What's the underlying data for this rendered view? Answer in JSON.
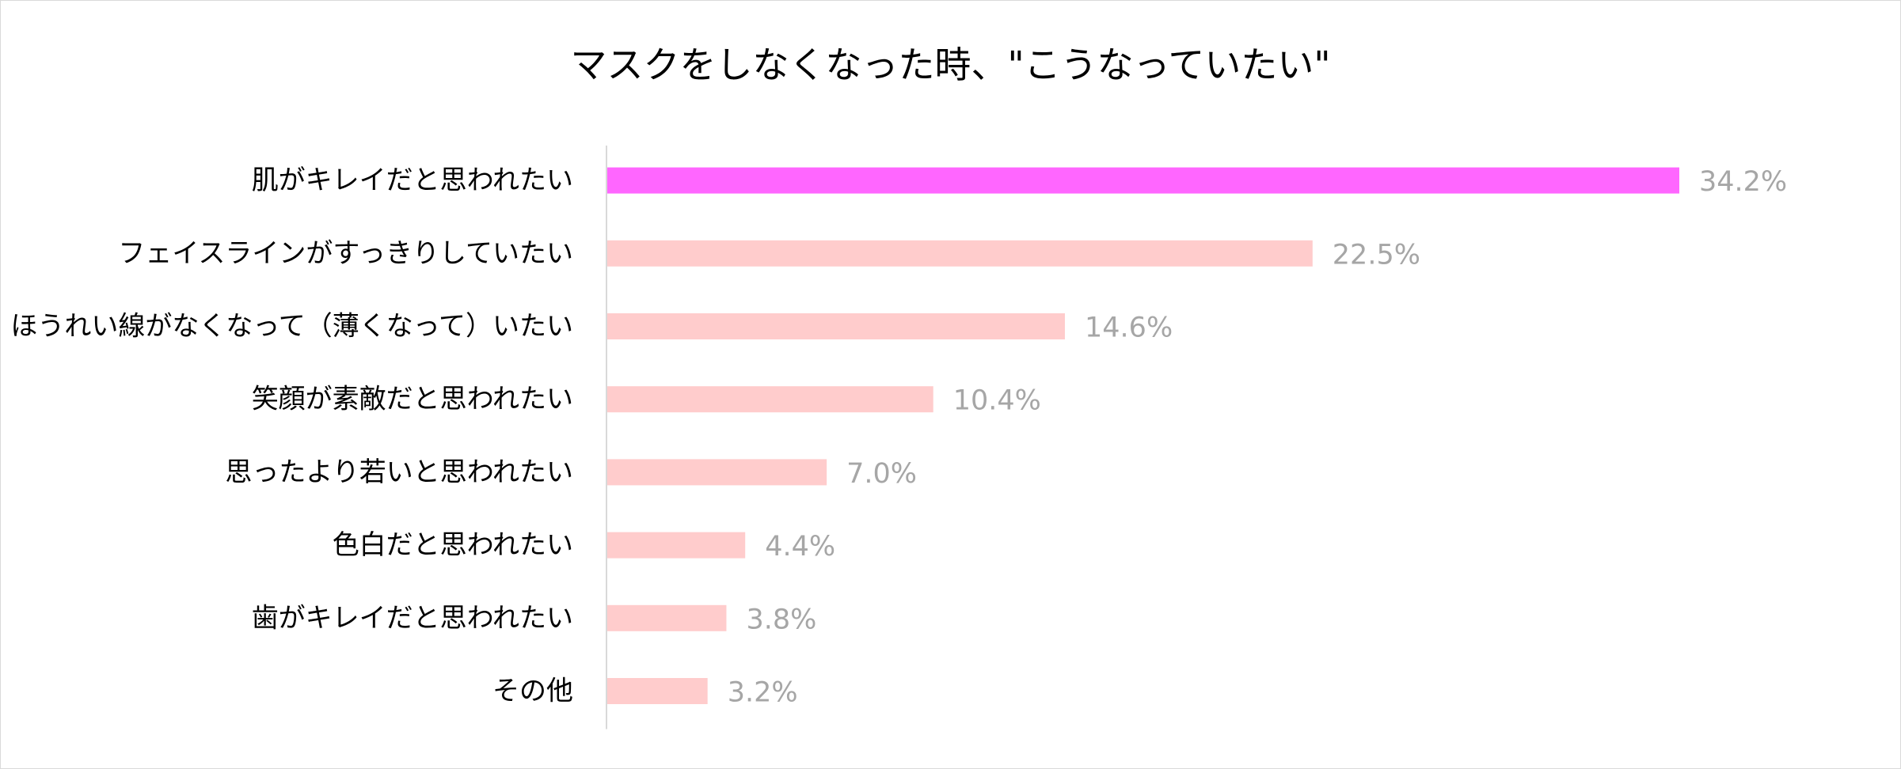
{
  "chart_data": {
    "type": "bar",
    "orientation": "horizontal",
    "title": "マスクをしなくなった時、\"こうなっていたい\"",
    "categories": [
      "肌がキレイだと思われたい",
      "フェイスラインがすっきりしていたい",
      "ほうれい線がなくなって（薄くなって）いたい",
      "笑顔が素敵だと思われたい",
      "思ったより若いと思われたい",
      "色白だと思われたい",
      "歯がキレイだと思われたい",
      "その他"
    ],
    "values": [
      34.2,
      22.5,
      14.6,
      10.4,
      7.0,
      4.4,
      3.8,
      3.2
    ],
    "value_labels": [
      "34.2%",
      "22.5%",
      "14.6%",
      "10.4%",
      "7.0%",
      "4.4%",
      "3.8%",
      "3.2%"
    ],
    "xlim": [
      0,
      40
    ],
    "grid": false,
    "legend": "none",
    "colors": {
      "highlight": "#ff66ff",
      "bar": "#ffcccc",
      "value_label": "#a6a6a6",
      "axis": "#d9d9d9"
    }
  }
}
